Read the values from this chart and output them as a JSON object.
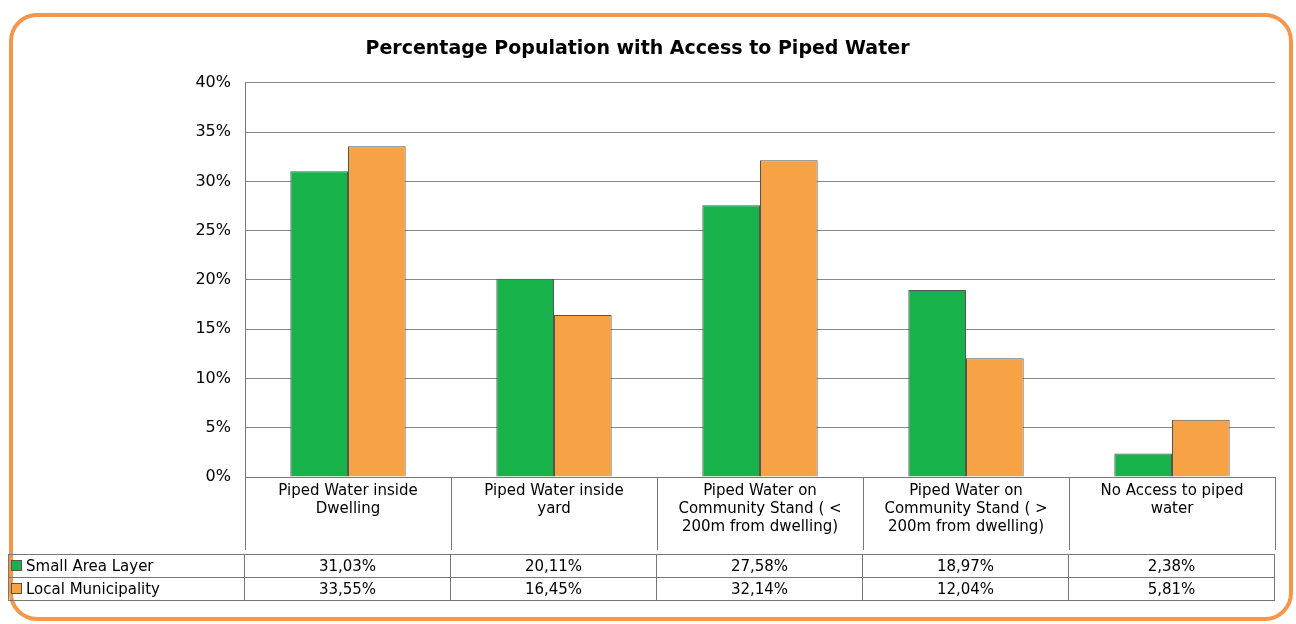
{
  "chart_data": {
    "type": "bar",
    "title": "Percentage Population with Access to Piped Water",
    "categories": [
      "Piped Water inside Dwelling",
      "Piped Water inside yard",
      "Piped Water on Community Stand ( < 200m from dwelling)",
      "Piped Water on Community Stand ( > 200m from dwelling)",
      "No Access to piped water"
    ],
    "series": [
      {
        "name": "Small Area Layer",
        "color": "#17b24a",
        "values": [
          31.03,
          20.11,
          27.58,
          18.97,
          2.38
        ],
        "value_labels": [
          "31,03%",
          "20,11%",
          "27,58%",
          "18,97%",
          "2,38%"
        ]
      },
      {
        "name": "Local Municipality",
        "color": "#f7a245",
        "values": [
          33.55,
          16.45,
          32.14,
          12.04,
          5.81
        ],
        "value_labels": [
          "33,55%",
          "16,45%",
          "32,14%",
          "12,04%",
          "5,81%"
        ]
      }
    ],
    "ylim": [
      0,
      40
    ],
    "yticks": [
      {
        "value": 0,
        "label": "0%"
      },
      {
        "value": 5,
        "label": "5%"
      },
      {
        "value": 10,
        "label": "10%"
      },
      {
        "value": 15,
        "label": "15%"
      },
      {
        "value": 20,
        "label": "20%"
      },
      {
        "value": 25,
        "label": "25%"
      },
      {
        "value": 30,
        "label": "30%"
      },
      {
        "value": 35,
        "label": "35%"
      },
      {
        "value": 40,
        "label": "40%"
      }
    ],
    "grid": "y",
    "legend": "bottom"
  }
}
